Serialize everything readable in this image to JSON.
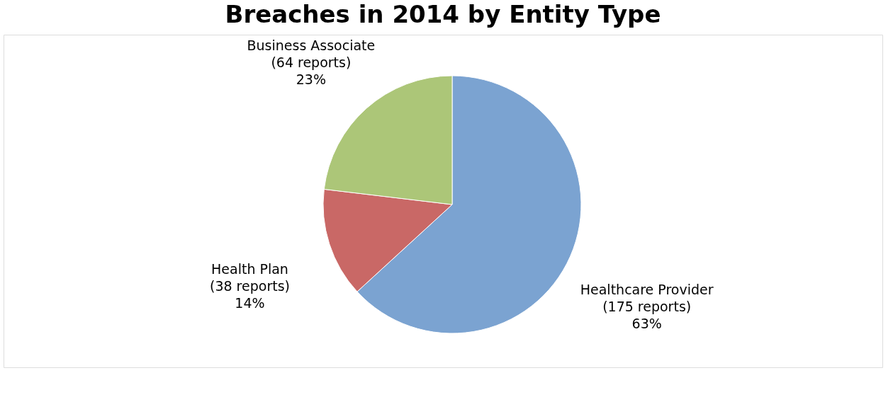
{
  "chart_data": {
    "type": "pie",
    "title": "Breaches in 2014 by Entity Type",
    "categories": [
      "Healthcare Provider",
      "Health Plan",
      "Business Associate"
    ],
    "values": [
      175,
      38,
      64
    ],
    "value_labels": [
      "(175 reports)\n63%",
      "(38 reports)\n14%",
      "(64 reports)\n23%"
    ],
    "colors": [
      "#7ba3d1",
      "#c96866",
      "#acc678"
    ],
    "legend": false
  }
}
